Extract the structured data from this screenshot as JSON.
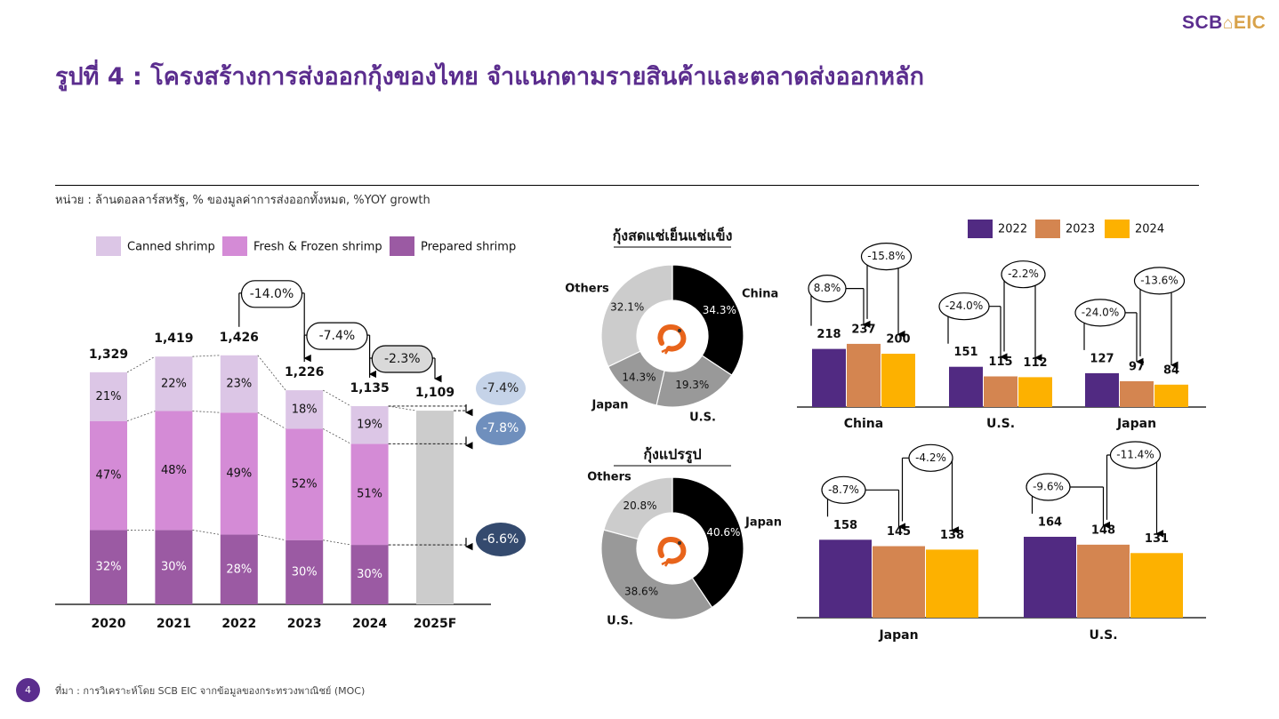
{
  "header": {
    "logo_left": "SCB",
    "logo_right": "EIC",
    "title": "รูปที่ 4 : โครงสร้างการส่งออกกุ้งของไทย จำแนกตามรายสินค้าและตลาดส่งออกหลัก",
    "unit_note": "หน่วย : ล้านดอลลาร์สหรัฐ, % ของมูลค่าการส่งออกทั้งหมด, %YOY growth"
  },
  "footer": {
    "page_number": "4",
    "source": "ที่มา : การวิเคราะห์โดย SCB EIC จากข้อมูลของกระทรวงพาณิชย์ (MOC)"
  },
  "colors": {
    "title": "#5b2d8e",
    "canned": "#dcc6e6",
    "fresh_frozen": "#d48bd6",
    "prepared": "#9b5aa3",
    "forecast": "#cccccc",
    "y2022": "#512a82",
    "y2023": "#d48550",
    "y2024": "#fdb100",
    "pie_black": "#000000",
    "pie_dark_grey": "#999999",
    "pie_light_grey": "#cccccc"
  },
  "chart_data": [
    {
      "type": "bar",
      "stacked": true,
      "categories": [
        "2020",
        "2021",
        "2022",
        "2023",
        "2024",
        "2025F"
      ],
      "totals": [
        "1,329",
        "1,419",
        "1,426",
        "1,226",
        "1,135",
        "1,109"
      ],
      "total_values": [
        1329,
        1419,
        1426,
        1226,
        1135,
        1109
      ],
      "series": [
        {
          "name": "Prepared shrimp",
          "color_key": "prepared",
          "shares": [
            32,
            30,
            28,
            30,
            30,
            null
          ],
          "labels": [
            "32%",
            "30%",
            "28%",
            "30%",
            "30%",
            ""
          ]
        },
        {
          "name": "Fresh & Frozen shrimp",
          "color_key": "fresh_frozen",
          "shares": [
            47,
            48,
            49,
            52,
            51,
            null
          ],
          "labels": [
            "47%",
            "48%",
            "49%",
            "52%",
            "51%",
            ""
          ]
        },
        {
          "name": "Canned shrimp",
          "color_key": "canned",
          "shares": [
            21,
            22,
            23,
            18,
            19,
            null
          ],
          "labels": [
            "21%",
            "22%",
            "23%",
            "18%",
            "19%",
            ""
          ]
        }
      ],
      "forecast_index": 5,
      "growth_annotations": [
        {
          "label": "-14.0%",
          "from": "2022",
          "to": "2023"
        },
        {
          "label": "-7.4%",
          "from": "2023",
          "to": "2024"
        },
        {
          "label": "-2.3%",
          "from": "2024",
          "to": "2025F"
        }
      ],
      "side_badges": [
        {
          "label": "-7.4%",
          "segment": "Canned shrimp",
          "color": "#c5d3e8",
          "text_color": "#222222"
        },
        {
          "label": "-7.8%",
          "segment": "Fresh & Frozen shrimp",
          "color": "#6f8fbd",
          "text_color": "#ffffff"
        },
        {
          "label": "-6.6%",
          "segment": "Prepared shrimp",
          "color": "#344a6e",
          "text_color": "#ffffff"
        }
      ],
      "legend": [
        "Canned shrimp",
        "Fresh & Frozen shrimp",
        "Prepared shrimp"
      ],
      "legend_placement": "top"
    },
    {
      "type": "pie",
      "donut": true,
      "title": "กุ้งสดแช่เย็นแช่แข็ง",
      "slices": [
        {
          "name": "China",
          "value": 34.3,
          "label": "34.3%",
          "color_key": "pie_black"
        },
        {
          "name": "U.S.",
          "value": 19.3,
          "label": "19.3%",
          "color_key": "pie_dark_grey"
        },
        {
          "name": "Japan",
          "value": 14.3,
          "label": "14.3%",
          "color_key": "pie_dark_grey"
        },
        {
          "name": "Others",
          "value": 32.1,
          "label": "32.1%",
          "color_key": "pie_light_grey"
        }
      ]
    },
    {
      "type": "pie",
      "donut": true,
      "title": "กุ้งแปรรูป",
      "slices": [
        {
          "name": "Japan",
          "value": 40.6,
          "label": "40.6%",
          "color_key": "pie_black"
        },
        {
          "name": "U.S.",
          "value": 38.6,
          "label": "38.6%",
          "color_key": "pie_dark_grey"
        },
        {
          "name": "Others",
          "value": 20.8,
          "label": "20.8%",
          "color_key": "pie_light_grey"
        }
      ]
    },
    {
      "type": "bar",
      "legend": [
        "2022",
        "2023",
        "2024"
      ],
      "legend_placement": "top",
      "categories": [
        "China",
        "U.S.",
        "Japan"
      ],
      "series": [
        {
          "name": "2022",
          "color_key": "y2022",
          "values": [
            218,
            151,
            127
          ]
        },
        {
          "name": "2023",
          "color_key": "y2023",
          "values": [
            237,
            115,
            97
          ]
        },
        {
          "name": "2024",
          "color_key": "y2024",
          "values": [
            200,
            112,
            84
          ]
        }
      ],
      "growth": [
        {
          "category": "China",
          "y2023": "8.8%",
          "y2024": "-15.8%"
        },
        {
          "category": "U.S.",
          "y2023": "-24.0%",
          "y2024": "-2.2%"
        },
        {
          "category": "Japan",
          "y2023": "-24.0%",
          "y2024": "-13.6%"
        }
      ]
    },
    {
      "type": "bar",
      "categories": [
        "Japan",
        "U.S."
      ],
      "series": [
        {
          "name": "2022",
          "color_key": "y2022",
          "values": [
            158,
            164
          ]
        },
        {
          "name": "2023",
          "color_key": "y2023",
          "values": [
            145,
            148
          ]
        },
        {
          "name": "2024",
          "color_key": "y2024",
          "values": [
            138,
            131
          ]
        }
      ],
      "growth": [
        {
          "category": "Japan",
          "y2023": "-8.7%",
          "y2024": "-4.2%"
        },
        {
          "category": "U.S.",
          "y2023": "-9.6%",
          "y2024": "-11.4%"
        }
      ]
    }
  ]
}
